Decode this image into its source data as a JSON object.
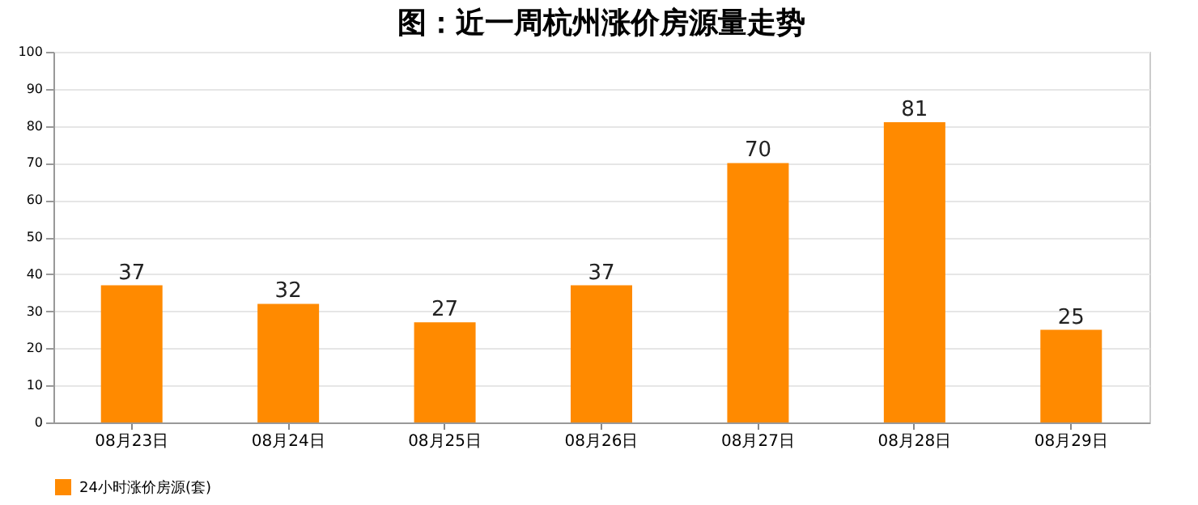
{
  "chart_data": {
    "type": "bar",
    "title": "图：近一周杭州涨价房源量走势",
    "categories": [
      "08月23日",
      "08月24日",
      "08月25日",
      "08月26日",
      "08月27日",
      "08月28日",
      "08月29日"
    ],
    "series": [
      {
        "name": "24小时涨价房源(套)",
        "color": "#ff8a00",
        "values": [
          37,
          32,
          27,
          37,
          70,
          81,
          25
        ]
      }
    ],
    "ylim": [
      0,
      100
    ],
    "yticks": [
      0,
      10,
      20,
      30,
      40,
      50,
      60,
      70,
      80,
      90,
      100
    ],
    "grid": "y",
    "legend": "bottom",
    "data_labels": true
  }
}
